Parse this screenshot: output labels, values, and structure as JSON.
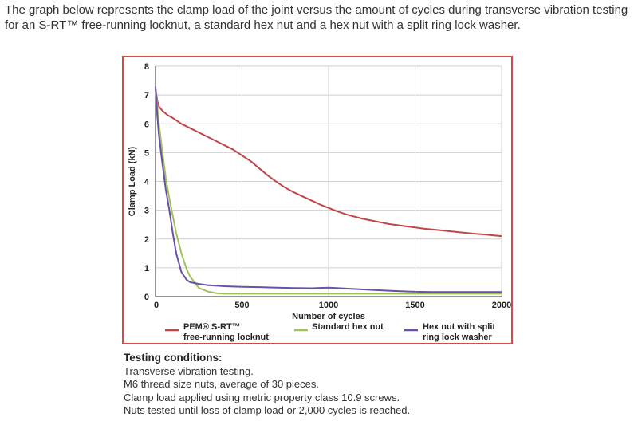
{
  "intro_text": "The graph below represents the clamp load of the joint versus the amount of cycles during transverse vibration testing for an S-RT™ free-running locknut, a standard hex nut and a hex nut with a split ring lock washer.",
  "chart_data": {
    "type": "line",
    "title": "",
    "xlabel": "Number of cycles",
    "ylabel": "Clamp Load (kN)",
    "xlim": [
      0,
      2000
    ],
    "ylim": [
      0,
      8
    ],
    "xticks": [
      "0",
      "500",
      "1000",
      "1500",
      "2000"
    ],
    "yticks": [
      "0",
      "1",
      "2",
      "3",
      "4",
      "5",
      "6",
      "7",
      "8"
    ],
    "grid": true,
    "legend_position": "bottom",
    "series": [
      {
        "name": "PEM® S-RT™ free-running locknut",
        "legend_lines": [
          "PEM® S-RT™",
          "free-running locknut"
        ],
        "color": "#c0464a",
        "x": [
          0,
          10,
          20,
          40,
          70,
          100,
          150,
          200,
          250,
          300,
          350,
          400,
          450,
          500,
          550,
          600,
          650,
          700,
          750,
          800,
          850,
          900,
          950,
          1000,
          1050,
          1100,
          1150,
          1200,
          1250,
          1300,
          1350,
          1400,
          1450,
          1500,
          1550,
          1600,
          1650,
          1700,
          1750,
          1800,
          1850,
          1900,
          1950,
          2000
        ],
        "y": [
          7.2,
          6.8,
          6.6,
          6.45,
          6.3,
          6.2,
          6.0,
          5.85,
          5.7,
          5.55,
          5.4,
          5.25,
          5.1,
          4.9,
          4.7,
          4.45,
          4.2,
          3.98,
          3.78,
          3.62,
          3.48,
          3.34,
          3.2,
          3.08,
          2.96,
          2.86,
          2.78,
          2.7,
          2.64,
          2.58,
          2.52,
          2.48,
          2.44,
          2.4,
          2.36,
          2.33,
          2.3,
          2.27,
          2.24,
          2.21,
          2.18,
          2.16,
          2.13,
          2.1
        ]
      },
      {
        "name": "Standard hex nut",
        "legend_lines": [
          "Standard hex nut"
        ],
        "color": "#9cc35a",
        "x": [
          0,
          10,
          20,
          40,
          60,
          80,
          100,
          120,
          150,
          180,
          200,
          250,
          300,
          350,
          400,
          500,
          600,
          800,
          1000,
          1200,
          1400,
          1600,
          1800,
          2000
        ],
        "y": [
          7.2,
          6.6,
          6.0,
          5.0,
          4.1,
          3.4,
          2.8,
          2.2,
          1.5,
          0.95,
          0.7,
          0.3,
          0.18,
          0.12,
          0.1,
          0.1,
          0.1,
          0.1,
          0.1,
          0.1,
          0.1,
          0.1,
          0.1,
          0.1
        ]
      },
      {
        "name": "Hex nut with split ring lock washer",
        "legend_lines": [
          "Hex nut with split",
          "ring lock washer"
        ],
        "color": "#6a50a8",
        "x": [
          0,
          10,
          20,
          40,
          60,
          80,
          100,
          120,
          150,
          180,
          200,
          250,
          300,
          400,
          500,
          600,
          700,
          800,
          900,
          1000,
          1100,
          1200,
          1300,
          1400,
          1500,
          1600,
          1700,
          1800,
          1900,
          2000
        ],
        "y": [
          7.3,
          6.3,
          5.6,
          4.6,
          3.7,
          3.0,
          2.2,
          1.5,
          0.85,
          0.58,
          0.5,
          0.44,
          0.4,
          0.36,
          0.34,
          0.33,
          0.31,
          0.3,
          0.29,
          0.31,
          0.28,
          0.25,
          0.22,
          0.19,
          0.17,
          0.16,
          0.16,
          0.16,
          0.16,
          0.16
        ]
      }
    ]
  },
  "conditions": {
    "heading": "Testing conditions:",
    "lines": [
      "Transverse vibration testing.",
      "M6 thread size nuts, average of 30 pieces.",
      "Clamp load applied using metric property class 10.9 screws.",
      "Nuts tested until loss of clamp load or 2,000 cycles is reached."
    ]
  }
}
